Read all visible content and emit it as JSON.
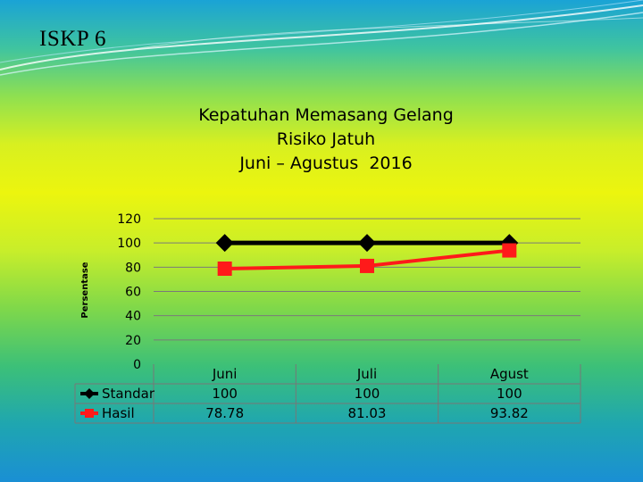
{
  "slide": {
    "title": "ISKP 6"
  },
  "chart_data": {
    "type": "line",
    "title_lines": [
      "Kepatuhan Memasang Gelang",
      "Risiko Jatuh",
      "Juni – Agustus  2016"
    ],
    "ylabel": "Persentase",
    "xlabel": "",
    "categories": [
      "Juni",
      "Juli",
      "Agust"
    ],
    "ylim": [
      0,
      120
    ],
    "yticks": [
      0,
      20,
      40,
      60,
      80,
      100,
      120
    ],
    "grid": true,
    "legend": "data-table",
    "series": [
      {
        "name": "Standar",
        "values": [
          100,
          100,
          100
        ],
        "display": [
          "100",
          "100",
          "100"
        ],
        "color": "#000000",
        "marker": "diamond"
      },
      {
        "name": "Hasil",
        "values": [
          78.78,
          81.03,
          93.82
        ],
        "display": [
          "78.78",
          "81.03",
          "93.82"
        ],
        "color": "#ff1a1a",
        "marker": "square"
      }
    ]
  }
}
